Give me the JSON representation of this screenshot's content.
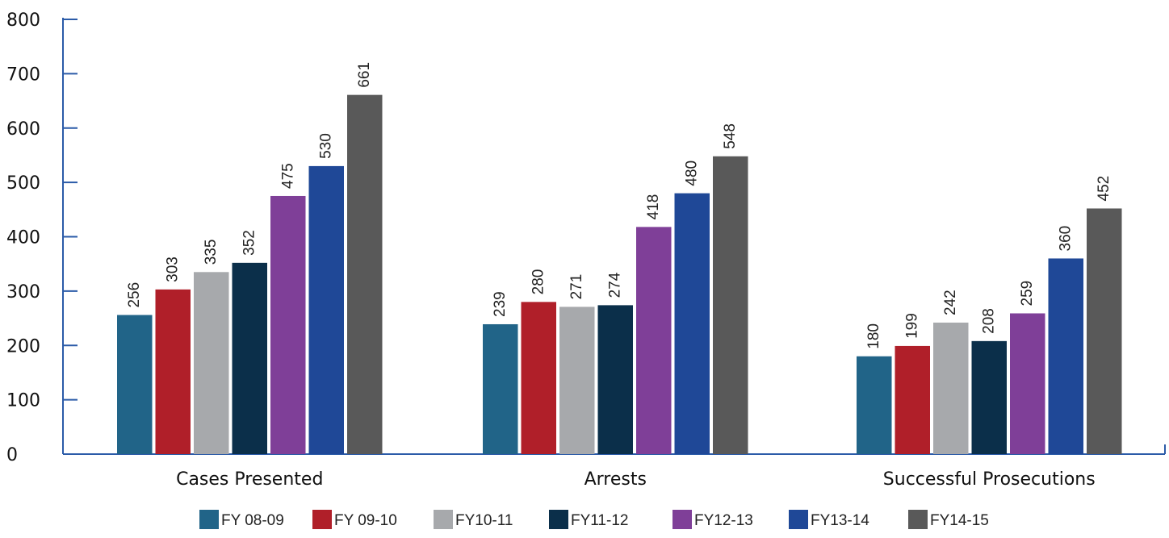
{
  "chart_data": {
    "type": "bar",
    "title": "",
    "xlabel": "",
    "ylabel": "",
    "ylim": [
      0,
      800
    ],
    "yticks": [
      0,
      100,
      200,
      300,
      400,
      500,
      600,
      700,
      800
    ],
    "categories": [
      "Cases Presented",
      "Arrests",
      "Successful Prosecutions"
    ],
    "series": [
      {
        "name": "FY 08-09",
        "color": "#216488",
        "values": [
          256,
          239,
          180
        ]
      },
      {
        "name": "FY 09-10",
        "color": "#B01F29",
        "values": [
          303,
          280,
          199
        ]
      },
      {
        "name": "FY10-11",
        "color": "#A7A9AC",
        "values": [
          335,
          271,
          242
        ]
      },
      {
        "name": "FY11-12",
        "color": "#0B2F4A",
        "values": [
          352,
          274,
          208
        ]
      },
      {
        "name": "FY12-13",
        "color": "#7F3F98",
        "values": [
          475,
          418,
          259
        ]
      },
      {
        "name": "FY13-14",
        "color": "#1F4897",
        "values": [
          530,
          480,
          360
        ]
      },
      {
        "name": "FY14-15",
        "color": "#595959",
        "values": [
          661,
          548,
          452
        ]
      }
    ],
    "legend_position": "bottom",
    "grid": false,
    "axis_color": "#2B5BA8"
  }
}
